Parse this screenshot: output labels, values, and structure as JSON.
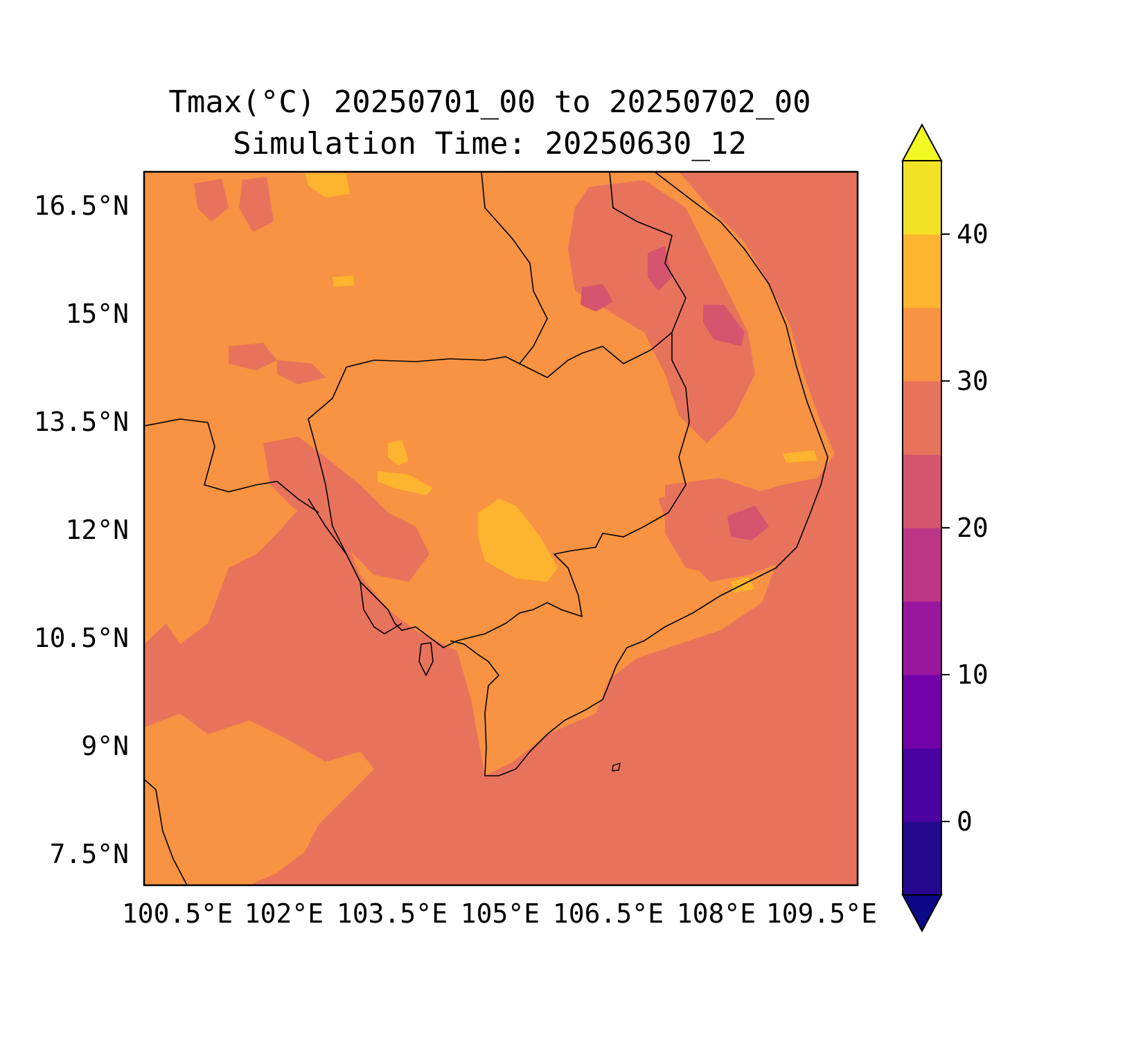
{
  "title": {
    "line1": "Tmax(°C) 20250701_00 to 20250702_00",
    "line2": "Simulation Time: 20250630_12"
  },
  "map": {
    "lon_range": [
      100.5,
      109.5
    ],
    "lat_range": [
      7.5,
      16.5
    ],
    "lat_ticks": [
      "16.5°N",
      "15°N",
      "13.5°N",
      "12°N",
      "10.5°N",
      "9°N",
      "7.5°N"
    ],
    "lon_ticks": [
      "100.5°E",
      "102°E",
      "103.5°E",
      "105°E",
      "106.5°E",
      "108°E",
      "109.5°E"
    ],
    "field_variable": "Tmax (°C)",
    "dominant_values": {
      "sea": "25-30",
      "inland": "30-35",
      "warm_spots": "35-40",
      "cool_spots_vietnam_highlands": "20-25"
    }
  },
  "colorbar": {
    "extend": "both",
    "levels": [
      -5,
      0,
      5,
      10,
      15,
      20,
      25,
      30,
      35,
      40,
      45
    ],
    "colors": [
      "#24088d",
      "#4b03a1",
      "#7301a8",
      "#9a169f",
      "#bd3786",
      "#d5546e",
      "#e8735c",
      "#f79342",
      "#fdb42f",
      "#f2e226"
    ],
    "under_color": "#0d0887",
    "over_color": "#f0f921",
    "tick_labels": [
      "0",
      "10",
      "20",
      "30",
      "40"
    ],
    "tick_values": [
      0,
      10,
      20,
      30,
      40
    ]
  },
  "palette": {
    "sea": "#e8735c",
    "land": "#f79342",
    "hot": "#fdb42f",
    "cool": "#d5546e"
  }
}
